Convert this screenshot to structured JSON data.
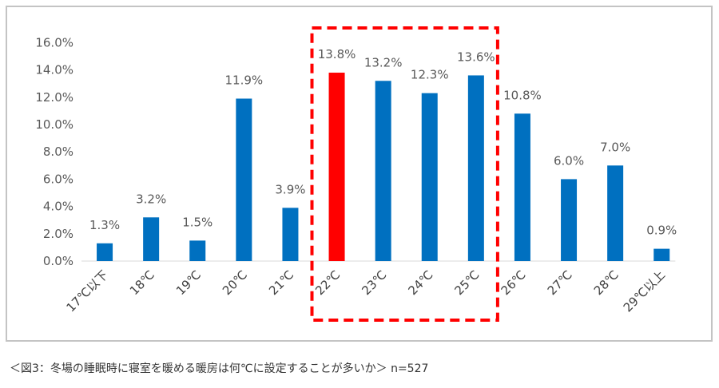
{
  "chart_data": {
    "type": "bar",
    "categories": [
      "17℃以下",
      "18℃",
      "19℃",
      "20℃",
      "21℃",
      "22℃",
      "23℃",
      "24℃",
      "25℃",
      "26℃",
      "27℃",
      "28℃",
      "29℃以上"
    ],
    "values": [
      1.3,
      3.2,
      1.5,
      11.9,
      3.9,
      13.8,
      13.2,
      12.3,
      13.6,
      10.8,
      6.0,
      7.0,
      0.9
    ],
    "data_labels": [
      "1.3%",
      "3.2%",
      "1.5%",
      "11.9%",
      "3.9%",
      "13.8%",
      "13.2%",
      "12.3%",
      "13.6%",
      "10.8%",
      "6.0%",
      "7.0%",
      "0.9%"
    ],
    "y_ticks": [
      "0.0%",
      "2.0%",
      "4.0%",
      "6.0%",
      "8.0%",
      "10.0%",
      "12.0%",
      "14.0%",
      "16.0%"
    ],
    "ylim": [
      0,
      16
    ],
    "grid": false,
    "colors": {
      "bar": "#0070c0",
      "highlight_bar": "#ff0000",
      "highlight_box": "#ff0000"
    },
    "highlight_index": 5,
    "highlight_range": [
      "22℃",
      "25℃"
    ]
  },
  "caption": "＜図3：冬場の睡眠時に寝室を暖める暖房は何℃に設定することが多いか＞ n=527"
}
